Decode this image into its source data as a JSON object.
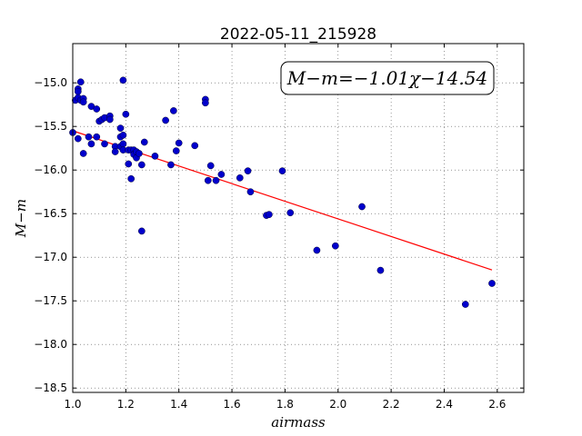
{
  "chart_data": {
    "type": "scatter",
    "title": "2022-05-11_215928",
    "xlabel": "airmass",
    "ylabel": "M−m",
    "xlim": [
      1.0,
      2.7
    ],
    "ylim": [
      -18.55,
      -14.55
    ],
    "xticks": [
      1.0,
      1.2,
      1.4,
      1.6,
      1.8,
      2.0,
      2.2,
      2.4,
      2.6
    ],
    "xtick_labels": [
      "1.0",
      "1.2",
      "1.4",
      "1.6",
      "1.8",
      "2.0",
      "2.2",
      "2.4",
      "2.6"
    ],
    "yticks": [
      -15.0,
      -15.5,
      -16.0,
      -16.5,
      -17.0,
      -17.5,
      -18.0,
      -18.5
    ],
    "ytick_labels": [
      "−15.0",
      "−15.5",
      "−16.0",
      "−16.5",
      "−17.0",
      "−17.5",
      "−18.0",
      "−18.5"
    ],
    "grid": true,
    "annotation": "M−m=−1.01χ−14.54",
    "fit": {
      "slope": -1.01,
      "intercept": -14.54,
      "x_range": [
        1.0,
        2.58
      ],
      "color": "#ff0000"
    },
    "marker_color": "#0000cc",
    "points": [
      [
        1.0,
        -15.57
      ],
      [
        1.01,
        -15.2
      ],
      [
        1.02,
        -15.07
      ],
      [
        1.02,
        -15.1
      ],
      [
        1.02,
        -15.17
      ],
      [
        1.02,
        -15.64
      ],
      [
        1.03,
        -14.99
      ],
      [
        1.03,
        -15.2
      ],
      [
        1.04,
        -15.18
      ],
      [
        1.04,
        -15.22
      ],
      [
        1.04,
        -15.81
      ],
      [
        1.06,
        -15.62
      ],
      [
        1.07,
        -15.7
      ],
      [
        1.07,
        -15.27
      ],
      [
        1.09,
        -15.62
      ],
      [
        1.09,
        -15.3
      ],
      [
        1.1,
        -15.44
      ],
      [
        1.11,
        -15.42
      ],
      [
        1.12,
        -15.4
      ],
      [
        1.12,
        -15.7
      ],
      [
        1.14,
        -15.38
      ],
      [
        1.14,
        -15.42
      ],
      [
        1.16,
        -15.73
      ],
      [
        1.16,
        -15.79
      ],
      [
        1.18,
        -15.73
      ],
      [
        1.18,
        -15.62
      ],
      [
        1.18,
        -15.52
      ],
      [
        1.19,
        -15.6
      ],
      [
        1.19,
        -15.7
      ],
      [
        1.19,
        -15.77
      ],
      [
        1.19,
        -14.97
      ],
      [
        1.2,
        -15.36
      ],
      [
        1.21,
        -15.77
      ],
      [
        1.21,
        -15.93
      ],
      [
        1.22,
        -15.77
      ],
      [
        1.22,
        -16.1
      ],
      [
        1.23,
        -15.77
      ],
      [
        1.23,
        -15.82
      ],
      [
        1.24,
        -15.86
      ],
      [
        1.24,
        -15.79
      ],
      [
        1.25,
        -15.81
      ],
      [
        1.26,
        -15.94
      ],
      [
        1.26,
        -16.7
      ],
      [
        1.27,
        -15.68
      ],
      [
        1.31,
        -15.84
      ],
      [
        1.35,
        -15.43
      ],
      [
        1.37,
        -15.94
      ],
      [
        1.38,
        -15.32
      ],
      [
        1.39,
        -15.78
      ],
      [
        1.4,
        -15.69
      ],
      [
        1.46,
        -15.72
      ],
      [
        1.5,
        -15.19
      ],
      [
        1.5,
        -15.23
      ],
      [
        1.51,
        -16.12
      ],
      [
        1.52,
        -15.95
      ],
      [
        1.54,
        -16.12
      ],
      [
        1.56,
        -16.05
      ],
      [
        1.63,
        -16.09
      ],
      [
        1.66,
        -16.01
      ],
      [
        1.67,
        -16.25
      ],
      [
        1.73,
        -16.52
      ],
      [
        1.74,
        -16.51
      ],
      [
        1.79,
        -16.01
      ],
      [
        1.82,
        -16.49
      ],
      [
        1.92,
        -16.92
      ],
      [
        1.99,
        -16.87
      ],
      [
        2.09,
        -16.42
      ],
      [
        2.16,
        -17.15
      ],
      [
        2.48,
        -17.54
      ],
      [
        2.58,
        -17.3
      ]
    ]
  }
}
